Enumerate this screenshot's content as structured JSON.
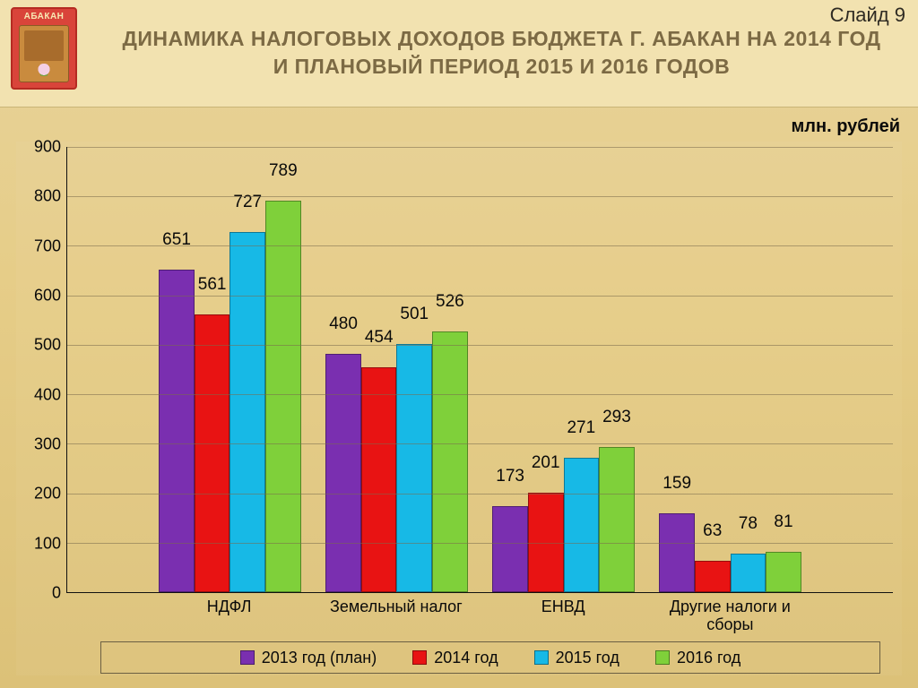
{
  "slide_number": "Слайд 9",
  "emblem_text": "АБАКАН",
  "title": {
    "line1": "ДИНАМИКА НАЛОГОВЫХ ДОХОДОВ БЮДЖЕТА г. АБАКАН НА 2014 ГОД",
    "line2": "И ПЛАНОВЫЙ ПЕРИОД 2015 И 2016 ГОДОВ",
    "color": "#7c6a44",
    "fontsize": 23
  },
  "unit_label": "млн. рублей",
  "chart": {
    "type": "bar",
    "background_color": "transparent",
    "grid_color": "#7a6c4c",
    "axis_color": "#111111",
    "ylim": [
      0,
      900
    ],
    "ytick_step": 100,
    "yticks": [
      0,
      100,
      200,
      300,
      400,
      500,
      600,
      700,
      800,
      900
    ],
    "label_fontsize": 18,
    "datalabel_fontsize": 19,
    "bar_width_pct": 4.3,
    "group_gap_pct": 3.0,
    "categories": [
      "НДФЛ",
      "Земельный налог",
      "ЕНВД",
      "Другие налоги и\nсборы"
    ],
    "series": [
      {
        "name": "2013 год (план)",
        "color": "#7a2fb0",
        "values": [
          651,
          480,
          173,
          159
        ]
      },
      {
        "name": "2014 год",
        "color": "#e81313",
        "values": [
          561,
          454,
          201,
          63
        ]
      },
      {
        "name": "2015 год",
        "color": "#17b9e6",
        "values": [
          727,
          501,
          271,
          78
        ]
      },
      {
        "name": "2016 год",
        "color": "#7fd03a",
        "values": [
          789,
          526,
          293,
          81
        ]
      }
    ]
  }
}
